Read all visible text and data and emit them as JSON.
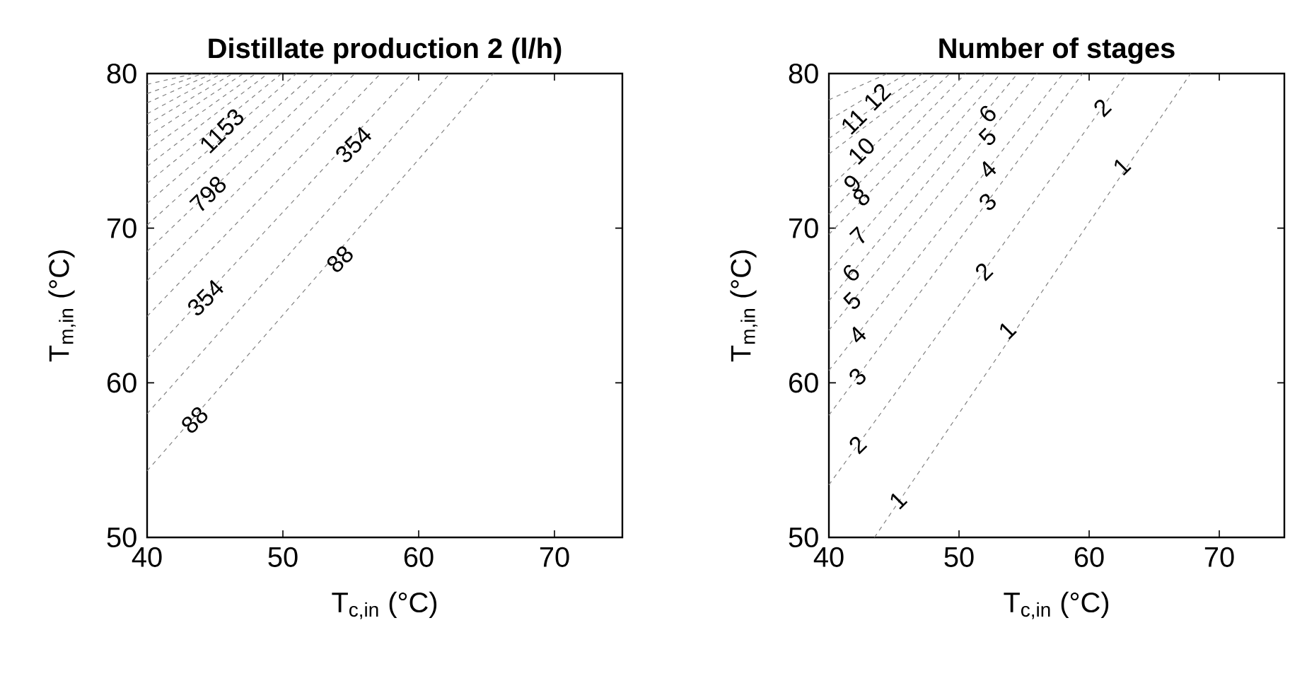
{
  "chart_data": [
    {
      "type": "line",
      "title": "Distillate production 2 (l/h)",
      "xlabel": "T$_{c,in}$ (°C)",
      "ylabel": "T$_{m,in}$ (°C)",
      "xlim": [
        40,
        75
      ],
      "ylim": [
        50,
        80
      ],
      "xticks": [
        40,
        50,
        60,
        70
      ],
      "yticks": [
        50,
        60,
        70,
        80
      ],
      "line_style": "dashed",
      "series": [
        {
          "color": "#808080",
          "x": [
            40,
            65.5
          ],
          "values": [
            54.3,
            80
          ]
        },
        {
          "color": "#808080",
          "x": [
            40,
            62.3
          ],
          "values": [
            58.0,
            80
          ]
        },
        {
          "color": "#808080",
          "x": [
            40,
            59.5
          ],
          "values": [
            61.6,
            80
          ]
        },
        {
          "color": "#808080",
          "x": [
            40,
            57.2
          ],
          "values": [
            64.3,
            80
          ]
        },
        {
          "color": "#808080",
          "x": [
            40,
            55.3
          ],
          "values": [
            66.6,
            80
          ]
        },
        {
          "color": "#808080",
          "x": [
            40,
            53.7
          ],
          "values": [
            68.5,
            80
          ]
        },
        {
          "color": "#808080",
          "x": [
            40,
            52.3
          ],
          "values": [
            70.2,
            80
          ]
        },
        {
          "color": "#808080",
          "x": [
            40,
            51.0
          ],
          "values": [
            71.6,
            80
          ]
        },
        {
          "color": "#808080",
          "x": [
            40,
            49.9
          ],
          "values": [
            72.9,
            80
          ]
        },
        {
          "color": "#808080",
          "x": [
            40,
            48.9
          ],
          "values": [
            74.0,
            80
          ]
        },
        {
          "color": "#808080",
          "x": [
            40,
            48.0
          ],
          "values": [
            75.0,
            80
          ]
        },
        {
          "color": "#808080",
          "x": [
            40,
            47.1
          ],
          "values": [
            75.9,
            80
          ]
        },
        {
          "color": "#808080",
          "x": [
            40,
            46.3
          ],
          "values": [
            76.7,
            80
          ]
        },
        {
          "color": "#808080",
          "x": [
            40,
            45.5
          ],
          "values": [
            77.4,
            80
          ]
        },
        {
          "color": "#808080",
          "x": [
            40,
            44.8
          ],
          "values": [
            78.1,
            80
          ]
        },
        {
          "color": "#808080",
          "x": [
            40,
            44.1
          ],
          "values": [
            78.7,
            80
          ]
        },
        {
          "color": "#808080",
          "x": [
            40,
            43.5
          ],
          "values": [
            79.3,
            80
          ]
        }
      ],
      "annotations": [
        {
          "text": "88",
          "x": 43.5,
          "y": 57.6
        },
        {
          "text": "88",
          "x": 54.2,
          "y": 68
        },
        {
          "text": "354",
          "x": 44.3,
          "y": 65.5
        },
        {
          "text": "354",
          "x": 55.2,
          "y": 75.4
        },
        {
          "text": "798",
          "x": 44.5,
          "y": 72.2
        },
        {
          "text": "1153",
          "x": 45.5,
          "y": 76.3
        }
      ]
    },
    {
      "type": "line",
      "title": "Number of stages",
      "xlabel": "T$_{c,in}$ (°C)",
      "ylabel": "T$_{m,in}$ (°C)",
      "xlim": [
        40,
        75
      ],
      "ylim": [
        50,
        80
      ],
      "xticks": [
        40,
        50,
        60,
        70
      ],
      "yticks": [
        50,
        60,
        70,
        80
      ],
      "line_style": "dashed",
      "series": [
        {
          "color": "#808080",
          "x": [
            43.5,
            67.8
          ],
          "values": [
            50,
            80
          ]
        },
        {
          "color": "#808080",
          "x": [
            40,
            62.9
          ],
          "values": [
            53.4,
            80
          ]
        },
        {
          "color": "#808080",
          "x": [
            40,
            59.5
          ],
          "values": [
            57.9,
            80
          ]
        },
        {
          "color": "#808080",
          "x": [
            40,
            58.0
          ],
          "values": [
            60.8,
            80
          ]
        },
        {
          "color": "#808080",
          "x": [
            40,
            56.0
          ],
          "values": [
            63.4,
            80
          ]
        },
        {
          "color": "#808080",
          "x": [
            40,
            54.5
          ],
          "values": [
            65.3,
            80
          ]
        },
        {
          "color": "#808080",
          "x": [
            40,
            53.2
          ],
          "values": [
            67.2,
            80
          ]
        },
        {
          "color": "#808080",
          "x": [
            40,
            52.0
          ],
          "values": [
            69.6,
            80
          ]
        },
        {
          "color": "#808080",
          "x": [
            40,
            50.5
          ],
          "values": [
            70.9,
            80
          ]
        },
        {
          "color": "#808080",
          "x": [
            40,
            49.3
          ],
          "values": [
            72.6,
            80
          ]
        },
        {
          "color": "#808080",
          "x": [
            40,
            48.2
          ],
          "values": [
            74.8,
            80
          ]
        },
        {
          "color": "#808080",
          "x": [
            40,
            47.2
          ],
          "values": [
            75.8,
            80
          ]
        },
        {
          "color": "#808080",
          "x": [
            40,
            46.0
          ],
          "values": [
            77.0,
            80
          ]
        },
        {
          "color": "#808080",
          "x": [
            40,
            44.5
          ],
          "values": [
            78.3,
            80
          ]
        }
      ],
      "annotations": [
        {
          "text": "1",
          "x": 45.3,
          "y": 52.4
        },
        {
          "text": "1",
          "x": 53.7,
          "y": 63.4
        },
        {
          "text": "1",
          "x": 62.5,
          "y": 74
        },
        {
          "text": "2",
          "x": 42.2,
          "y": 56
        },
        {
          "text": "2",
          "x": 51.9,
          "y": 67.2
        },
        {
          "text": "2",
          "x": 61,
          "y": 77.8
        },
        {
          "text": "3",
          "x": 42.2,
          "y": 60.4
        },
        {
          "text": "3",
          "x": 52.2,
          "y": 71.7
        },
        {
          "text": "4",
          "x": 42.2,
          "y": 63.1
        },
        {
          "text": "4",
          "x": 52.2,
          "y": 73.8
        },
        {
          "text": "5",
          "x": 41.8,
          "y": 65.3
        },
        {
          "text": "5",
          "x": 52.2,
          "y": 75.9
        },
        {
          "text": "6",
          "x": 41.7,
          "y": 67.1
        },
        {
          "text": "6",
          "x": 52.2,
          "y": 77.4
        },
        {
          "text": "7",
          "x": 42.3,
          "y": 69.5
        },
        {
          "text": "8",
          "x": 42.5,
          "y": 72
        },
        {
          "text": "9",
          "x": 41.8,
          "y": 72.9
        },
        {
          "text": "10",
          "x": 42.5,
          "y": 75
        },
        {
          "text": "11",
          "x": 41.9,
          "y": 76.9
        },
        {
          "text": "12",
          "x": 43.7,
          "y": 78.5
        }
      ]
    }
  ]
}
